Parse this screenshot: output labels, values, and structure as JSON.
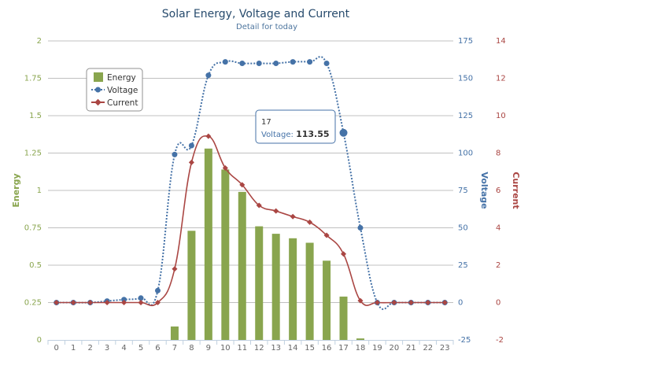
{
  "chart_data": {
    "type": "bar+line",
    "title": "Solar Energy, Voltage and Current",
    "subtitle": "Detail for today",
    "categories": [
      "0",
      "1",
      "2",
      "3",
      "4",
      "5",
      "6",
      "7",
      "8",
      "9",
      "10",
      "11",
      "12",
      "13",
      "14",
      "15",
      "16",
      "17",
      "18",
      "19",
      "20",
      "21",
      "22",
      "23"
    ],
    "y_axes": {
      "energy": {
        "title": "Energy",
        "min": 0,
        "max": 2,
        "ticks": [
          "0",
          "0.25",
          "0.5",
          "0.75",
          "1",
          "1.25",
          "1.5",
          "1.75",
          "2"
        ]
      },
      "voltage": {
        "title": "Voltage",
        "min": -25,
        "max": 175,
        "ticks": [
          "-25",
          "0",
          "25",
          "50",
          "75",
          "100",
          "125",
          "150",
          "175"
        ]
      },
      "current": {
        "title": "Current",
        "min": -2,
        "max": 14,
        "ticks": [
          "-2",
          "0",
          "2",
          "4",
          "6",
          "8",
          "10",
          "12",
          "14"
        ]
      }
    },
    "series": [
      {
        "name": "Energy",
        "type": "bar",
        "axis": "energy",
        "values": [
          0,
          0,
          0,
          0,
          0,
          0,
          0,
          0.09,
          0.73,
          1.28,
          1.14,
          0.99,
          0.76,
          0.71,
          0.68,
          0.65,
          0.53,
          0.29,
          0.01,
          0,
          0,
          0,
          0,
          0
        ]
      },
      {
        "name": "Voltage",
        "type": "line",
        "axis": "voltage",
        "values": [
          0,
          0,
          0,
          1,
          2,
          3,
          8,
          99,
          105,
          152,
          161,
          160,
          160,
          160,
          161,
          161,
          160,
          113.55,
          50,
          0,
          0,
          0,
          0,
          0
        ]
      },
      {
        "name": "Current",
        "type": "line",
        "axis": "current",
        "values": [
          0,
          0,
          0,
          0,
          0,
          0,
          0,
          1.8,
          7.5,
          8.9,
          7.2,
          6.3,
          5.2,
          4.9,
          4.6,
          4.3,
          3.6,
          2.6,
          0.1,
          0,
          0,
          0,
          0,
          0
        ]
      }
    ],
    "legend_position": "top-left",
    "grid": true,
    "colors": {
      "energy": "#89a54e",
      "voltage": "#4572a7",
      "current": "#aa4643"
    },
    "tooltip": {
      "x": "17",
      "series": "Voltage",
      "value": "113.55"
    }
  }
}
